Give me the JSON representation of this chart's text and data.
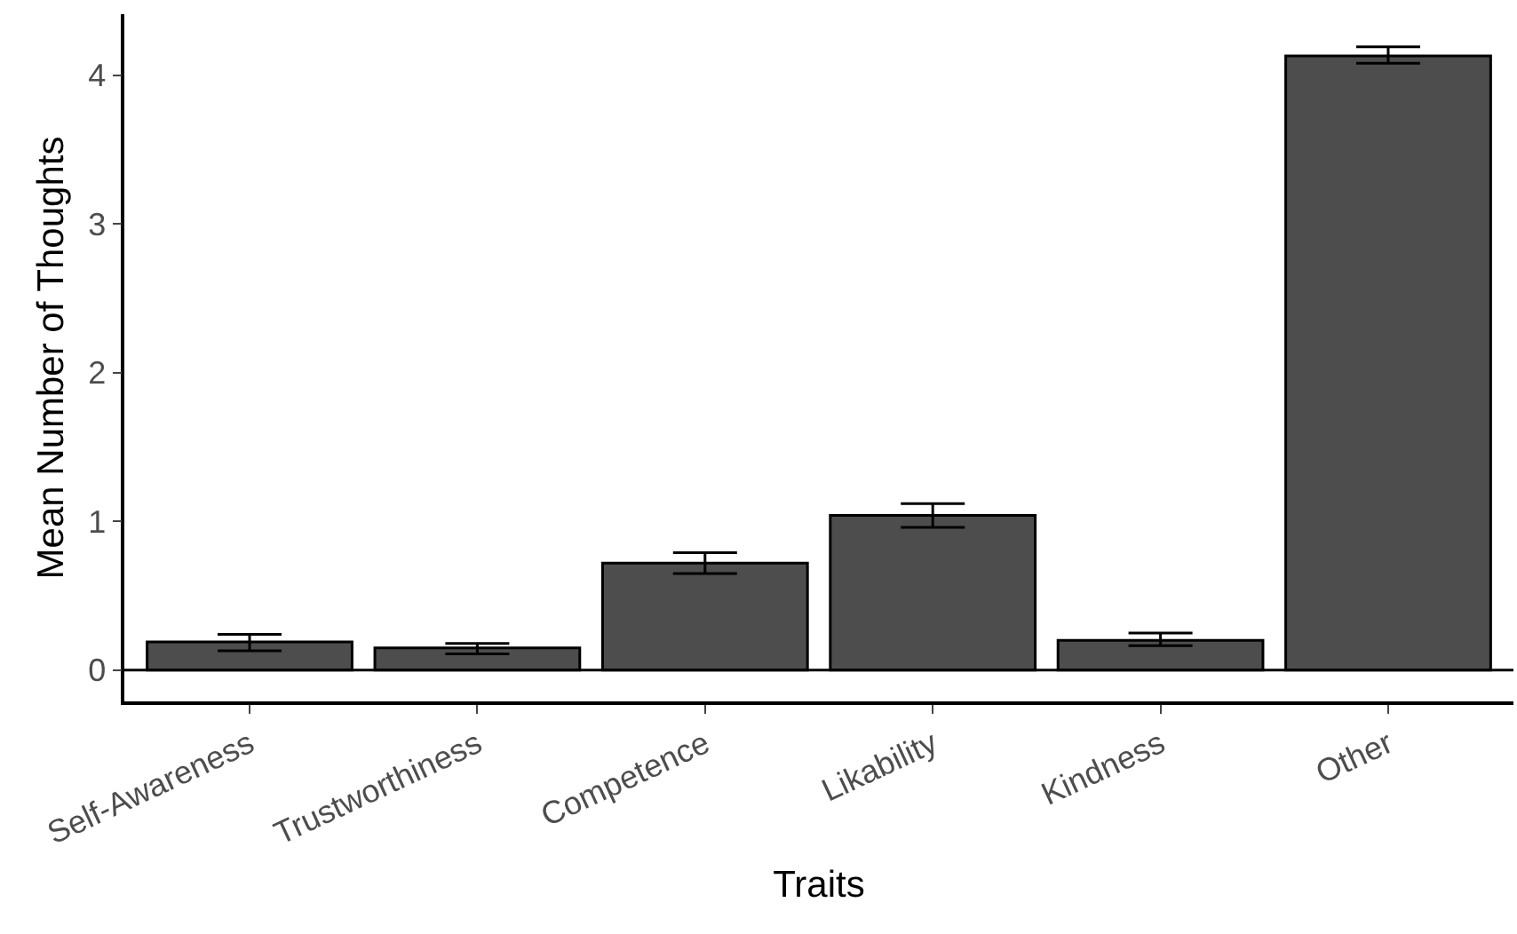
{
  "chart_data": {
    "type": "bar",
    "xlabel": "Traits",
    "ylabel": "Mean Number of Thoughts",
    "categories": [
      "Self-Awareness",
      "Trustworthiness",
      "Competence",
      "Likability",
      "Kindness",
      "Other"
    ],
    "values": [
      0.19,
      0.15,
      0.72,
      1.04,
      0.2,
      4.13
    ],
    "errors": [
      [
        0.13,
        0.24
      ],
      [
        0.11,
        0.18
      ],
      [
        0.65,
        0.79
      ],
      [
        0.96,
        1.12
      ],
      [
        0.165,
        0.25
      ],
      [
        4.08,
        4.19
      ]
    ],
    "color": "#4d4d4d",
    "ylim": [
      -0.21,
      4.41
    ],
    "yticks": [
      0,
      1,
      2,
      3,
      4
    ],
    "ref_lines": [
      {
        "axis": "y",
        "value": 0,
        "color": "#000000"
      }
    ],
    "legend": false
  }
}
